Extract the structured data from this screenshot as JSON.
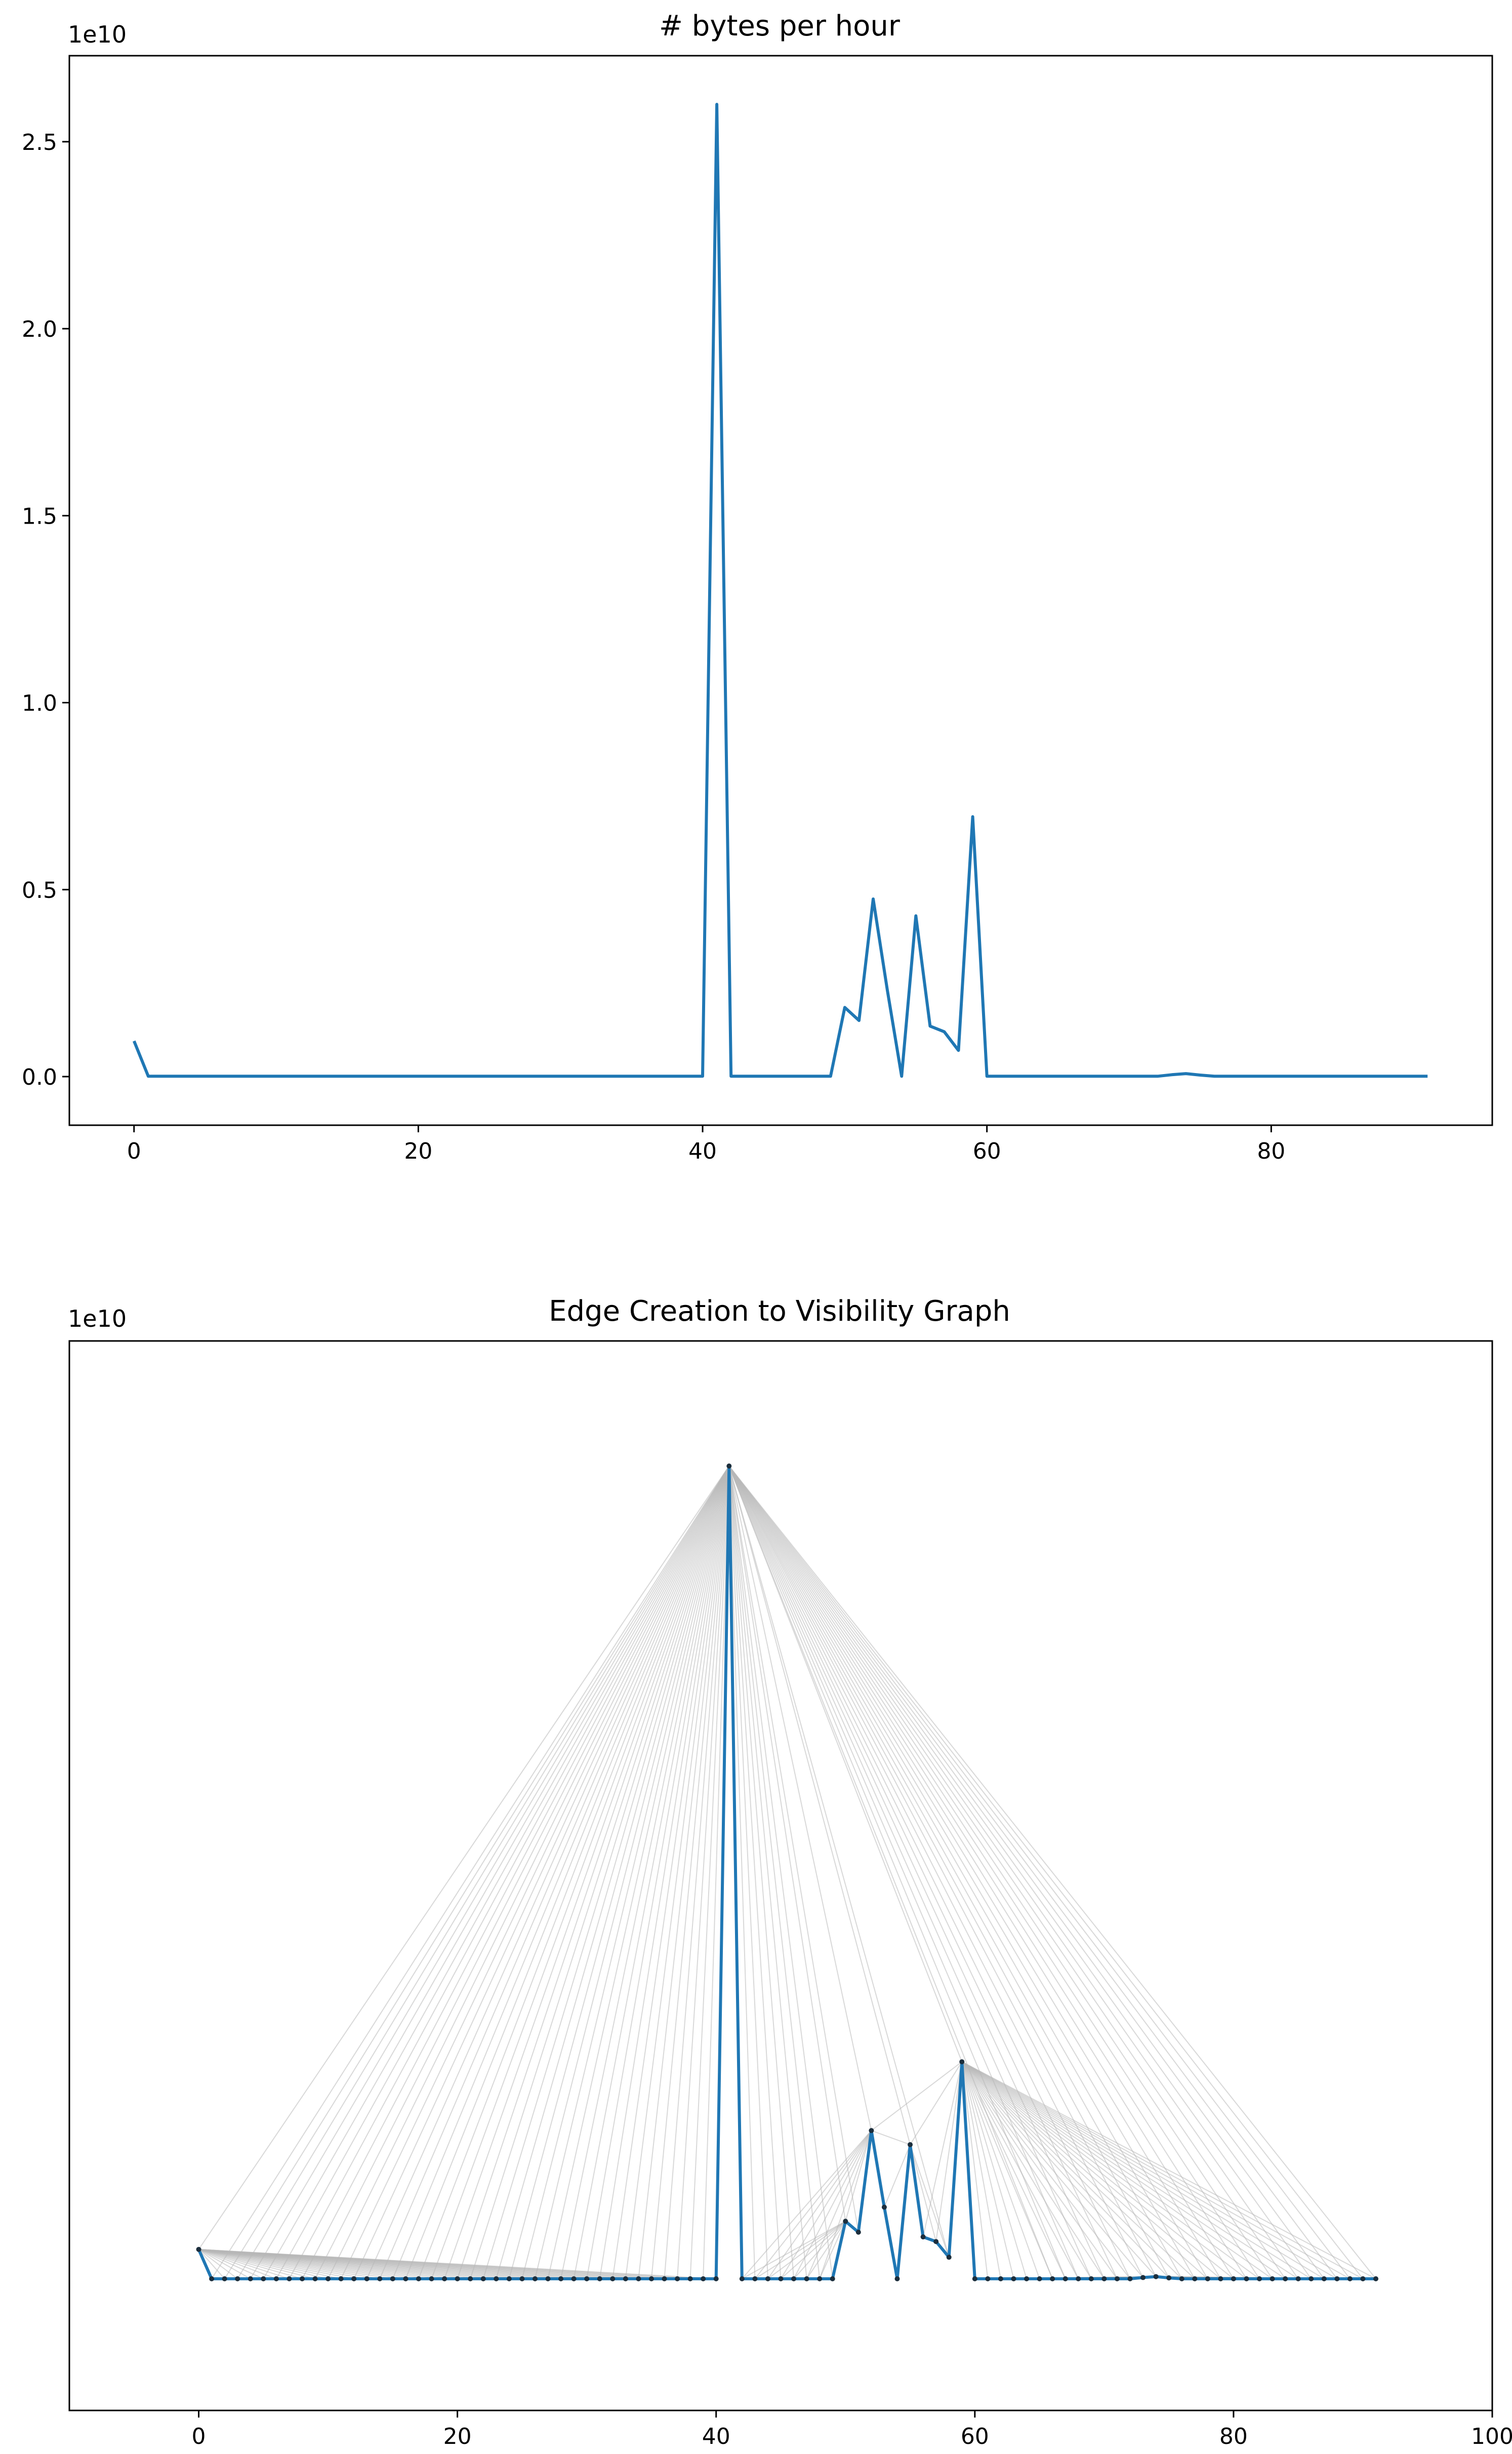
{
  "chart_data": [
    {
      "type": "line",
      "title": "# bytes per hour",
      "xlabel": "",
      "ylabel": "",
      "offset_label": "1e10",
      "xlim": [
        -4.55,
        95.55
      ],
      "ylim": [
        -1300000000.0,
        27300000000.0
      ],
      "xticks": [
        0,
        20,
        40,
        60,
        80
      ],
      "xtick_labels": [
        "0",
        "20",
        "40",
        "60",
        "80"
      ],
      "yticks": [
        0,
        5000000000.0,
        10000000000.0,
        15000000000.0,
        20000000000.0,
        25000000000.0
      ],
      "ytick_labels": [
        "0.0",
        "0.5",
        "1.0",
        "1.5",
        "2.0",
        "2.5"
      ],
      "grid": false,
      "series": [
        {
          "color": "#1f77b4",
          "x": [
            0,
            1,
            2,
            3,
            4,
            5,
            6,
            7,
            8,
            9,
            10,
            11,
            12,
            13,
            14,
            15,
            16,
            17,
            18,
            19,
            20,
            21,
            22,
            23,
            24,
            25,
            26,
            27,
            28,
            29,
            30,
            31,
            32,
            33,
            34,
            35,
            36,
            37,
            38,
            39,
            40,
            41,
            42,
            43,
            44,
            45,
            46,
            47,
            48,
            49,
            50,
            51,
            52,
            53,
            54,
            55,
            56,
            57,
            58,
            59,
            60,
            61,
            62,
            63,
            64,
            65,
            66,
            67,
            68,
            69,
            70,
            71,
            72,
            73,
            74,
            75,
            76,
            77,
            78,
            79,
            80,
            81,
            82,
            83,
            84,
            85,
            86,
            87,
            88,
            89,
            90,
            91
          ],
          "values": [
            950000000.0,
            10000000.0,
            10000000.0,
            10000000.0,
            10000000.0,
            10000000.0,
            10000000.0,
            10000000.0,
            10000000.0,
            10000000.0,
            10000000.0,
            10000000.0,
            10000000.0,
            10000000.0,
            10000000.0,
            10000000.0,
            10000000.0,
            10000000.0,
            10000000.0,
            10000000.0,
            10000000.0,
            10000000.0,
            10000000.0,
            10000000.0,
            10000000.0,
            10000000.0,
            10000000.0,
            10000000.0,
            10000000.0,
            10000000.0,
            10000000.0,
            10000000.0,
            10000000.0,
            10000000.0,
            10000000.0,
            10000000.0,
            10000000.0,
            10000000.0,
            10000000.0,
            10000000.0,
            10000000.0,
            26000000000.0,
            10000000.0,
            10000000.0,
            10000000.0,
            10000000.0,
            10000000.0,
            10000000.0,
            10000000.0,
            10000000.0,
            1850000000.0,
            1500000000.0,
            4750000000.0,
            2300000000.0,
            10000000.0,
            4300000000.0,
            1350000000.0,
            1200000000.0,
            700000000.0,
            6950000000.0,
            10000000.0,
            10000000.0,
            10000000.0,
            10000000.0,
            10000000.0,
            10000000.0,
            10000000.0,
            10000000.0,
            10000000.0,
            10000000.0,
            10000000.0,
            10000000.0,
            10000000.0,
            50000000.0,
            80000000.0,
            40000000.0,
            10000000.0,
            10000000.0,
            10000000.0,
            10000000.0,
            10000000.0,
            10000000.0,
            10000000.0,
            10000000.0,
            10000000.0,
            10000000.0,
            10000000.0,
            10000000.0,
            10000000.0,
            10000000.0,
            10000000.0,
            10000000.0
          ]
        }
      ]
    },
    {
      "type": "line",
      "title": "Edge Creation to Visibility Graph",
      "xlabel": "",
      "ylabel": "",
      "offset_label": "1e10",
      "xlim": [
        -10,
        100
      ],
      "ylim": [
        -4200000000.0,
        30000000000.0
      ],
      "xticks": [
        0,
        20,
        40,
        60,
        80,
        100
      ],
      "xtick_labels": [
        "0",
        "20",
        "40",
        "60",
        "80",
        "100"
      ],
      "yticks": [],
      "ytick_labels": [],
      "grid": false,
      "edge_color": "#b8b8b8",
      "series": [
        {
          "color": "#1f77b4",
          "marker_color": "#1c2e3c",
          "x": [
            0,
            1,
            2,
            3,
            4,
            5,
            6,
            7,
            8,
            9,
            10,
            11,
            12,
            13,
            14,
            15,
            16,
            17,
            18,
            19,
            20,
            21,
            22,
            23,
            24,
            25,
            26,
            27,
            28,
            29,
            30,
            31,
            32,
            33,
            34,
            35,
            36,
            37,
            38,
            39,
            40,
            41,
            42,
            43,
            44,
            45,
            46,
            47,
            48,
            49,
            50,
            51,
            52,
            53,
            54,
            55,
            56,
            57,
            58,
            59,
            60,
            61,
            62,
            63,
            64,
            65,
            66,
            67,
            68,
            69,
            70,
            71,
            72,
            73,
            74,
            75,
            76,
            77,
            78,
            79,
            80,
            81,
            82,
            83,
            84,
            85,
            86,
            87,
            88,
            89,
            90,
            91
          ],
          "values": [
            950000000.0,
            10000000.0,
            10000000.0,
            10000000.0,
            10000000.0,
            10000000.0,
            10000000.0,
            10000000.0,
            10000000.0,
            10000000.0,
            10000000.0,
            10000000.0,
            10000000.0,
            10000000.0,
            10000000.0,
            10000000.0,
            10000000.0,
            10000000.0,
            10000000.0,
            10000000.0,
            10000000.0,
            10000000.0,
            10000000.0,
            10000000.0,
            10000000.0,
            10000000.0,
            10000000.0,
            10000000.0,
            10000000.0,
            10000000.0,
            10000000.0,
            10000000.0,
            10000000.0,
            10000000.0,
            10000000.0,
            10000000.0,
            10000000.0,
            10000000.0,
            10000000.0,
            10000000.0,
            10000000.0,
            26000000000.0,
            10000000.0,
            10000000.0,
            10000000.0,
            10000000.0,
            10000000.0,
            10000000.0,
            10000000.0,
            10000000.0,
            1850000000.0,
            1500000000.0,
            4750000000.0,
            2300000000.0,
            10000000.0,
            4300000000.0,
            1350000000.0,
            1200000000.0,
            700000000.0,
            6950000000.0,
            10000000.0,
            10000000.0,
            10000000.0,
            10000000.0,
            10000000.0,
            10000000.0,
            10000000.0,
            10000000.0,
            10000000.0,
            10000000.0,
            10000000.0,
            10000000.0,
            10000000.0,
            50000000.0,
            80000000.0,
            40000000.0,
            10000000.0,
            10000000.0,
            10000000.0,
            10000000.0,
            10000000.0,
            10000000.0,
            10000000.0,
            10000000.0,
            10000000.0,
            10000000.0,
            10000000.0,
            10000000.0,
            10000000.0,
            10000000.0,
            10000000.0,
            10000000.0
          ]
        }
      ]
    }
  ]
}
